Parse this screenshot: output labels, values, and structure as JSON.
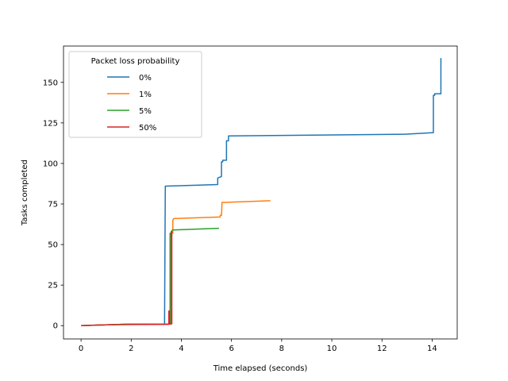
{
  "chart_data": {
    "type": "line",
    "xlabel": "Time elapsed (seconds)",
    "ylabel": "Tasks completed",
    "xlim": [
      -0.7,
      15.0
    ],
    "ylim": [
      -8.2,
      172.4
    ],
    "xticks": [
      0,
      2,
      4,
      6,
      8,
      10,
      12,
      14
    ],
    "yticks": [
      0,
      25,
      50,
      75,
      100,
      125,
      150
    ],
    "grid": false,
    "legend": {
      "title": "Packet loss probability",
      "placement": "top-left"
    },
    "series": [
      {
        "name": "0%",
        "color": "#1f77b4",
        "x": [
          0,
          1,
          2,
          3.33,
          3.33,
          3.36,
          5.45,
          5.45,
          5.6,
          5.6,
          5.65,
          5.65,
          5.8,
          5.8,
          5.88,
          5.88,
          12.9,
          14.05,
          14.05,
          14.1,
          14.1,
          14.35,
          14.35
        ],
        "y": [
          0,
          0.5,
          1,
          1,
          2,
          86,
          87,
          91,
          92,
          101,
          101,
          102,
          102,
          114,
          114,
          117,
          118,
          119,
          142,
          142,
          143,
          143,
          165
        ]
      },
      {
        "name": "1%",
        "color": "#ff7f0e",
        "x": [
          0,
          1,
          2,
          3.55,
          3.55,
          3.6,
          3.6,
          3.66,
          3.66,
          3.7,
          5.55,
          5.55,
          5.6,
          5.62,
          5.62,
          5.7,
          7.55
        ],
        "y": [
          0,
          0.5,
          1,
          1,
          55,
          55,
          57,
          57,
          65,
          66,
          67,
          68,
          68,
          75,
          76,
          76,
          77
        ]
      },
      {
        "name": "5%",
        "color": "#2ca02c",
        "x": [
          0,
          1,
          2,
          3.55,
          3.55,
          3.6,
          3.6,
          3.65,
          5.5
        ],
        "y": [
          0,
          0.5,
          1,
          1,
          57,
          57,
          58,
          59,
          60
        ]
      },
      {
        "name": "50%",
        "color": "#d62728",
        "x": [
          0,
          1,
          2,
          3.5,
          3.5,
          3.52,
          3.52,
          3.6,
          3.6,
          3.62,
          3.62
        ],
        "y": [
          0,
          0.5,
          0.7,
          0.8,
          9,
          9,
          1,
          1,
          58,
          58,
          1
        ]
      }
    ]
  }
}
